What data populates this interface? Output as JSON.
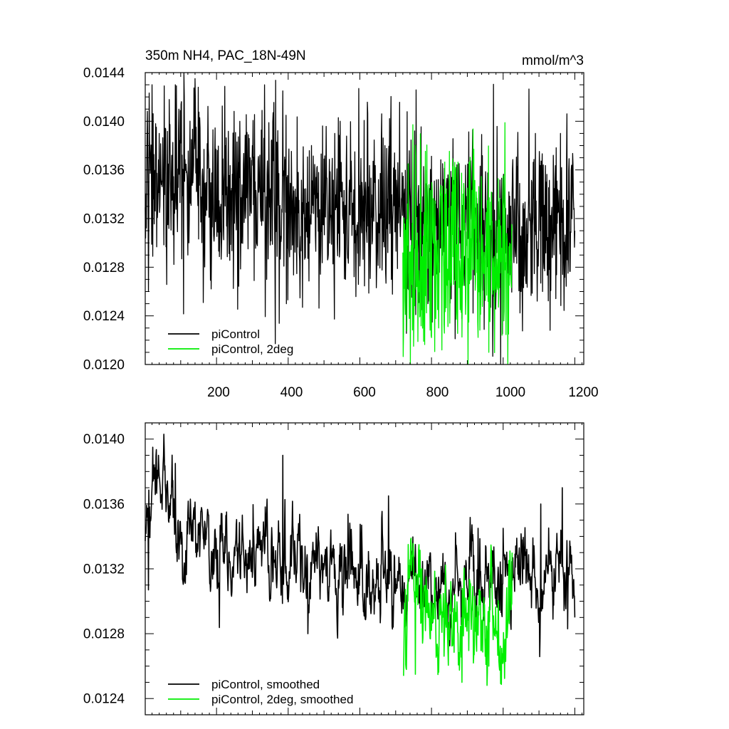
{
  "chart_data": [
    {
      "type": "line",
      "title": "350m NH4, PAC_18N-49N",
      "units": "mmol/m^3",
      "xlim": [
        1,
        1225
      ],
      "ylim": [
        0.012,
        0.0144
      ],
      "x_ticks": [
        "200",
        "400",
        "600",
        "800",
        "1000",
        "1200"
      ],
      "y_ticks": [
        "0.0120",
        "0.0124",
        "0.0128",
        "0.0132",
        "0.0136",
        "0.0140",
        "0.0144"
      ],
      "legend_position": "bottom-left",
      "series": [
        {
          "name": "piControl",
          "color": "#000000",
          "x_range": [
            1,
            1200
          ],
          "mean_profile": [
            [
              1,
              0.01345
            ],
            [
              100,
              0.01345
            ],
            [
              200,
              0.0134
            ],
            [
              300,
              0.01335
            ],
            [
              400,
              0.01335
            ],
            [
              500,
              0.0133
            ],
            [
              600,
              0.0133
            ],
            [
              700,
              0.01325
            ],
            [
              800,
              0.01315
            ],
            [
              900,
              0.0131
            ],
            [
              1000,
              0.0131
            ],
            [
              1100,
              0.01315
            ],
            [
              1200,
              0.0132
            ]
          ],
          "noise_sd": 0.00037,
          "spikes": [
            [
              5,
              0.0136
            ],
            [
              10,
              0.0126
            ],
            [
              20,
              0.0143
            ],
            [
              40,
              0.0139
            ],
            [
              60,
              0.0131
            ],
            [
              85,
              0.0143
            ],
            [
              95,
              0.0141
            ],
            [
              120,
              0.0129
            ],
            [
              300,
              0.0138
            ],
            [
              340,
              0.0127
            ],
            [
              385,
              0.01425
            ],
            [
              400,
              0.0131
            ],
            [
              440,
              0.01247
            ],
            [
              530,
              0.0139
            ],
            [
              545,
              0.014
            ],
            [
              560,
              0.0127
            ],
            [
              670,
              0.0138
            ],
            [
              700,
              0.0136
            ],
            [
              790,
              0.0125
            ],
            [
              1050,
              0.0126
            ],
            [
              1090,
              0.0139
            ],
            [
              1110,
              0.0126
            ],
            [
              1145,
              0.0135
            ],
            [
              1160,
              0.0139
            ],
            [
              1190,
              0.0136
            ],
            [
              1200,
              0.0131
            ]
          ]
        },
        {
          "name": "piControl, 2deg",
          "color": "#00ee00",
          "x_range": [
            720,
            1025
          ],
          "mean_profile": [
            [
              720,
              0.0128
            ],
            [
              800,
              0.01295
            ],
            [
              900,
              0.01285
            ],
            [
              1000,
              0.01285
            ],
            [
              1025,
              0.0129
            ]
          ],
          "noise_sd": 0.00045,
          "spikes": [
            [
              722,
              0.01228
            ],
            [
              735,
              0.01365
            ],
            [
              750,
              0.01215
            ],
            [
              770,
              0.01355
            ],
            [
              820,
              0.0123
            ],
            [
              840,
              0.0134
            ],
            [
              880,
              0.01245
            ],
            [
              900,
              0.01345
            ],
            [
              960,
              0.0121
            ],
            [
              1000,
              0.01355
            ],
            [
              1015,
              0.01225
            ],
            [
              1025,
              0.0131
            ]
          ]
        }
      ]
    },
    {
      "type": "line",
      "xlim": [
        1,
        1225
      ],
      "ylim": [
        0.0123,
        0.0141
      ],
      "y_ticks": [
        "0.0124",
        "0.0128",
        "0.0132",
        "0.0136",
        "0.0140"
      ],
      "legend_position": "bottom-left",
      "series": [
        {
          "name": "piControl, smoothed",
          "color": "#000000",
          "x_range": [
            1,
            1200
          ],
          "mean_profile": [
            [
              1,
              0.0133
            ],
            [
              20,
              0.0138
            ],
            [
              100,
              0.01345
            ],
            [
              200,
              0.01325
            ],
            [
              300,
              0.01335
            ],
            [
              400,
              0.01325
            ],
            [
              500,
              0.01325
            ],
            [
              600,
              0.0132
            ],
            [
              700,
              0.0131
            ],
            [
              800,
              0.0131
            ],
            [
              900,
              0.01315
            ],
            [
              1000,
              0.01315
            ],
            [
              1100,
              0.01315
            ],
            [
              1200,
              0.0131
            ]
          ],
          "noise_sd": 0.00014,
          "spikes": [
            [
              10,
              0.01307
            ],
            [
              22,
              0.01395
            ],
            [
              85,
              0.01385
            ],
            [
              385,
              0.0139
            ],
            [
              455,
              0.0128
            ],
            [
              680,
              0.01365
            ],
            [
              930,
              0.01345
            ],
            [
              1000,
              0.01345
            ],
            [
              1105,
              0.0136
            ],
            [
              1165,
              0.0137
            ],
            [
              1180,
              0.01283
            ]
          ]
        },
        {
          "name": "piControl, 2deg, smoothed",
          "color": "#00ee00",
          "x_range": [
            722,
            1025
          ],
          "mean_profile": [
            [
              722,
              0.01265
            ],
            [
              740,
              0.0131
            ],
            [
              800,
              0.0128
            ],
            [
              900,
              0.01285
            ],
            [
              1000,
              0.0128
            ],
            [
              1025,
              0.0131
            ]
          ],
          "noise_sd": 0.00018,
          "spikes": [
            [
              722,
              0.01254
            ],
            [
              735,
              0.01335
            ],
            [
              755,
              0.01255
            ],
            [
              885,
              0.0125
            ],
            [
              960,
              0.0126
            ],
            [
              1025,
              0.0133
            ]
          ]
        }
      ]
    }
  ]
}
